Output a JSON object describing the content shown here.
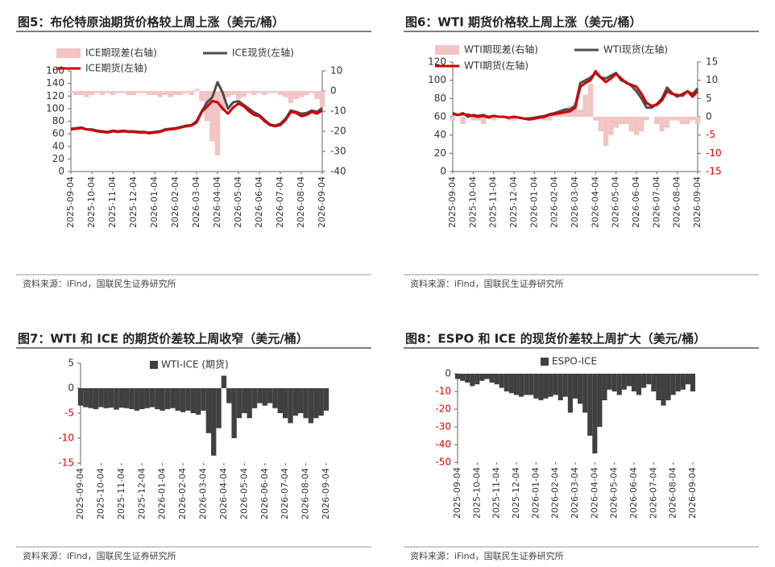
{
  "chart_data": [
    {
      "type": "combo",
      "title": "图5：布伦特原油期货价格较上周上涨（美元/桶）",
      "source": "资料来源：iFind，国联民生证券研究所",
      "categories": [
        "2025-09-04",
        null,
        null,
        null,
        "2025-10-04",
        null,
        null,
        null,
        "2025-11-04",
        null,
        null,
        null,
        "2025-12-04",
        null,
        null,
        null,
        "2026-01-04",
        null,
        null,
        null,
        "2026-02-04",
        null,
        null,
        null,
        "2026-03-04",
        null,
        null,
        null,
        "2026-04-04",
        null,
        null,
        null,
        "2026-05-04",
        null,
        null,
        null,
        "2026-06-04",
        null,
        null,
        null,
        "2026-07-04",
        null,
        null,
        null,
        "2026-08-04",
        null,
        null,
        null,
        "2026-09-04"
      ],
      "ylim": [
        0,
        160
      ],
      "yticks": [
        0,
        20,
        40,
        60,
        80,
        100,
        120,
        140,
        160
      ],
      "y2lim": [
        -40,
        10
      ],
      "y2ticks": [
        -40,
        -30,
        -20,
        -10,
        0,
        10
      ],
      "series": [
        {
          "name": "ICE期现差(右轴)",
          "kind": "bar",
          "axis": "y2",
          "color": "#f2c4c4",
          "values": [
            -1,
            -2,
            -2,
            -3,
            -2,
            -1,
            -2,
            -1,
            -2,
            -1,
            -1,
            -2,
            -2,
            -1,
            -1,
            -2,
            -2,
            -3,
            -2,
            -3,
            -2,
            -2,
            -1,
            -2,
            1,
            -5,
            -15,
            -25,
            -32,
            -10,
            -3,
            -2,
            -4,
            -3,
            -1,
            -2,
            -1,
            -2,
            -1,
            -1,
            -2,
            -3,
            -6,
            -4,
            -3,
            -2,
            -1,
            -4,
            -8
          ]
        },
        {
          "name": "ICE现货(左轴)",
          "kind": "line",
          "color": "#4d4d4d",
          "values": [
            68,
            69,
            70,
            67,
            67,
            65,
            64,
            63,
            65,
            64,
            65,
            64,
            64,
            63,
            63,
            62,
            63,
            64,
            67,
            68,
            69,
            71,
            73,
            74,
            80,
            96,
            110,
            118,
            142,
            125,
            100,
            110,
            112,
            106,
            100,
            94,
            90,
            82,
            75,
            73,
            76,
            84,
            97,
            95,
            92,
            93,
            97,
            95,
            101
          ]
        },
        {
          "name": "ICE期货(左轴)",
          "kind": "line",
          "color": "#d00000",
          "values": [
            67,
            68,
            69,
            67,
            66,
            64,
            63,
            62,
            64,
            63,
            64,
            63,
            63,
            62,
            62,
            61,
            62,
            63,
            66,
            67,
            68,
            70,
            72,
            73,
            78,
            95,
            103,
            112,
            110,
            100,
            92,
            102,
            108,
            104,
            96,
            90,
            88,
            80,
            74,
            72,
            74,
            82,
            95,
            93,
            88,
            90,
            95,
            92,
            97
          ]
        }
      ]
    },
    {
      "type": "combo",
      "title": "图6：WTI 期货价格较上周上涨（美元/桶）",
      "source": "资料来源：iFind，国联民生证券研究所",
      "negative_tick_color": "#e00000",
      "categories": [
        "2025-09-04",
        null,
        null,
        null,
        "2025-10-04",
        null,
        null,
        null,
        "2025-11-04",
        null,
        null,
        null,
        "2025-12-04",
        null,
        null,
        null,
        "2026-01-04",
        null,
        null,
        null,
        "2026-02-04",
        null,
        null,
        null,
        "2026-03-04",
        null,
        null,
        null,
        "2026-04-04",
        null,
        null,
        null,
        "2026-05-04",
        null,
        null,
        null,
        "2026-06-04",
        null,
        null,
        null,
        "2026-07-04",
        null,
        null,
        null,
        "2026-08-04",
        null,
        null,
        null,
        "2026-09-04"
      ],
      "ylim": [
        0,
        120
      ],
      "yticks": [
        0,
        20,
        40,
        60,
        80,
        100,
        120
      ],
      "y2lim": [
        -15,
        15
      ],
      "y2ticks": [
        -15,
        -10,
        -5,
        0,
        5,
        10,
        15
      ],
      "series": [
        {
          "name": "WTI期现差(右轴)",
          "kind": "bar",
          "axis": "y2",
          "color": "#f2c4c4",
          "values": [
            -1,
            0,
            -2,
            1,
            -1,
            -1,
            -2,
            0,
            -1,
            0,
            0,
            -1,
            -1,
            0,
            0,
            -1,
            -1,
            0,
            -1,
            -1,
            1,
            1,
            2,
            3,
            4,
            2,
            6,
            9,
            -1,
            -4,
            -8,
            -5,
            -3,
            -2,
            -2,
            -4,
            -5,
            -4,
            -1,
            0,
            -2,
            -4,
            -3,
            -1,
            -1,
            -2,
            -2,
            -1,
            -2
          ]
        },
        {
          "name": "WTI现货(左轴)",
          "kind": "line",
          "color": "#4d4d4d",
          "values": [
            64,
            62,
            64,
            60,
            62,
            61,
            62,
            60,
            61,
            60,
            60,
            59,
            60,
            59,
            58,
            58,
            59,
            60,
            61,
            63,
            64,
            66,
            68,
            68,
            72,
            97,
            100,
            103,
            108,
            103,
            102,
            105,
            108,
            100,
            98,
            94,
            88,
            80,
            70,
            70,
            74,
            80,
            92,
            86,
            82,
            85,
            88,
            85,
            91
          ]
        },
        {
          "name": "WTI期货(左轴)",
          "kind": "line",
          "color": "#d00000",
          "values": [
            63,
            62,
            63,
            62,
            61,
            60,
            61,
            59,
            61,
            60,
            60,
            59,
            60,
            59,
            58,
            57,
            58,
            59,
            60,
            62,
            63,
            64,
            65,
            66,
            70,
            93,
            97,
            100,
            110,
            103,
            98,
            102,
            107,
            102,
            97,
            95,
            93,
            85,
            75,
            72,
            73,
            78,
            88,
            85,
            84,
            83,
            88,
            82,
            88
          ]
        }
      ]
    },
    {
      "type": "bar",
      "title": "图7：WTI 和 ICE 的期货价差较上周收窄（美元/桶）",
      "source": "资料来源：iFind，国联民生证券研究所",
      "negative_tick_color": "#e00000",
      "categories": [
        "2025-09-04",
        null,
        null,
        null,
        "2025-10-04",
        null,
        null,
        null,
        "2025-11-04",
        null,
        null,
        null,
        "2025-12-04",
        null,
        null,
        null,
        "2026-01-04",
        null,
        null,
        null,
        "2026-02-04",
        null,
        null,
        null,
        "2026-03-04",
        null,
        null,
        null,
        "2026-04-04",
        null,
        null,
        null,
        "2026-05-04",
        null,
        null,
        null,
        "2026-06-04",
        null,
        null,
        null,
        "2026-07-04",
        null,
        null,
        null,
        "2026-08-04",
        null,
        null,
        null,
        "2026-09-04"
      ],
      "ylim": [
        -15,
        5
      ],
      "yticks": [
        -15,
        -10,
        -5,
        0,
        5
      ],
      "series": [
        {
          "name": "WTI-ICE (期货)",
          "kind": "bar",
          "color": "#404040",
          "values": [
            -3.5,
            -3.8,
            -4,
            -4.2,
            -3.8,
            -4,
            -3.9,
            -4.3,
            -3.9,
            -4,
            -4.2,
            -4.5,
            -4.2,
            -4,
            -3.8,
            -4.2,
            -4.5,
            -4.2,
            -4,
            -4.5,
            -4.8,
            -4.5,
            -5,
            -5.3,
            -4.5,
            -9,
            -13.5,
            -8,
            2.5,
            -3,
            -10,
            -6,
            -5,
            -6,
            -4,
            -3,
            -3.5,
            -3,
            -4,
            -5,
            -6,
            -7,
            -5.5,
            -5,
            -6,
            -7,
            -6,
            -5.5,
            -4.5
          ]
        }
      ]
    },
    {
      "type": "bar",
      "title": "图8：ESPO 和 ICE 的现货价差较上周扩大（美元/桶）",
      "source": "资料来源：iFind，国联民生证券研究所",
      "negative_tick_color": "#e00000",
      "categories": [
        "2025-09-04",
        null,
        null,
        null,
        "2025-10-04",
        null,
        null,
        null,
        "2025-11-04",
        null,
        null,
        null,
        "2025-12-04",
        null,
        null,
        null,
        "2026-01-04",
        null,
        null,
        null,
        "2026-02-04",
        null,
        null,
        null,
        "2026-03-04",
        null,
        null,
        null,
        "2026-04-04",
        null,
        null,
        null,
        "2026-05-04",
        null,
        null,
        null,
        "2026-06-04",
        null,
        null,
        null,
        "2026-07-04",
        null,
        null,
        null,
        "2026-08-04",
        null,
        null,
        null,
        "2026-09-04"
      ],
      "ylim": [
        -50,
        0
      ],
      "yticks": [
        -50,
        -40,
        -30,
        -20,
        -10,
        0
      ],
      "series": [
        {
          "name": "ESPO-ICE",
          "kind": "bar",
          "color": "#404040",
          "values": [
            -3,
            -4,
            -5,
            -7,
            -6,
            -4,
            -3,
            -5,
            -6,
            -8,
            -10,
            -11,
            -12,
            -13,
            -12,
            -12,
            -14,
            -15,
            -14,
            -13,
            -12,
            -15,
            -13,
            -22,
            -14,
            -17,
            -22,
            -35,
            -45,
            -30,
            -15,
            -9,
            -10,
            -12,
            -9,
            -7,
            -10,
            -12,
            -8,
            -6,
            -10,
            -15,
            -18,
            -15,
            -12,
            -10,
            -9,
            -6,
            -10
          ]
        }
      ]
    }
  ]
}
